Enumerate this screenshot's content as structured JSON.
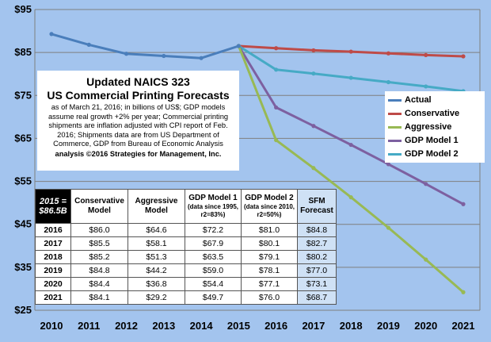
{
  "chart_data": {
    "type": "line",
    "x": [
      2010,
      2011,
      2012,
      2013,
      2014,
      2015,
      2016,
      2017,
      2018,
      2019,
      2020,
      2021
    ],
    "x_ticks": [
      "2010",
      "2011",
      "2012",
      "2013",
      "2014",
      "2015",
      "2016",
      "2017",
      "2018",
      "2019",
      "2020",
      "2021"
    ],
    "ylim": [
      25,
      95
    ],
    "y_ticks": [
      25,
      35,
      45,
      55,
      65,
      75,
      85,
      95
    ],
    "y_tick_labels": [
      "$25",
      "$35",
      "$45",
      "$55",
      "$65",
      "$75",
      "$85",
      "$95"
    ],
    "grid": "horizontal",
    "legend_position": "right",
    "series": [
      {
        "name": "Actual",
        "color": "#4a7ebb",
        "x": [
          2010,
          2011,
          2012,
          2013,
          2014,
          2015
        ],
        "values": [
          89.3,
          86.8,
          84.7,
          84.2,
          83.7,
          86.5
        ]
      },
      {
        "name": "Conservative",
        "color": "#be4b48",
        "x": [
          2015,
          2016,
          2017,
          2018,
          2019,
          2020,
          2021
        ],
        "values": [
          86.5,
          86.0,
          85.5,
          85.2,
          84.8,
          84.4,
          84.1
        ]
      },
      {
        "name": "Aggressive",
        "color": "#98b954",
        "x": [
          2015,
          2016,
          2017,
          2018,
          2019,
          2020,
          2021
        ],
        "values": [
          86.5,
          64.6,
          58.1,
          51.3,
          44.2,
          36.8,
          29.2
        ]
      },
      {
        "name": "GDP Model 1",
        "color": "#7d60a0",
        "x": [
          2015,
          2016,
          2017,
          2018,
          2019,
          2020,
          2021
        ],
        "values": [
          86.5,
          72.2,
          67.9,
          63.5,
          59.0,
          54.4,
          49.7
        ]
      },
      {
        "name": "GDP Model 2",
        "color": "#46aac5",
        "x": [
          2015,
          2016,
          2017,
          2018,
          2019,
          2020,
          2021
        ],
        "values": [
          86.5,
          81.0,
          80.1,
          79.1,
          78.1,
          77.1,
          76.0
        ]
      }
    ],
    "title_lines": [
      "Updated NAICS 323",
      "US Commercial Printing Forecasts"
    ],
    "note": "as of March 21, 2016; in billions of US$; GDP models assume real growth +2% per year; Commercial printing shipments are inflation adjusted with CPI report of Feb. 2016; Shipments data are from US Department of Commerce, GDP from Bureau of Economic Analysis",
    "copyright": "analysis ©2016 Strategies for Management, Inc."
  },
  "table": {
    "corner": "2015 = $86.5B",
    "headers": [
      {
        "main": "Conservative Model",
        "sub": ""
      },
      {
        "main": "Aggressive Model",
        "sub": ""
      },
      {
        "main": "GDP Model 1",
        "sub": "(data since 1995, r2=83%)"
      },
      {
        "main": "GDP Model 2",
        "sub": "(data since 2010, r2=50%)"
      },
      {
        "main": "SFM Forecast",
        "sub": ""
      }
    ],
    "rows": [
      {
        "year": "2016",
        "cells": [
          "$86.0",
          "$64.6",
          "$72.2",
          "$81.0",
          "$84.8"
        ]
      },
      {
        "year": "2017",
        "cells": [
          "$85.5",
          "$58.1",
          "$67.9",
          "$80.1",
          "$82.7"
        ]
      },
      {
        "year": "2018",
        "cells": [
          "$85.2",
          "$51.3",
          "$63.5",
          "$79.1",
          "$80.2"
        ]
      },
      {
        "year": "2019",
        "cells": [
          "$84.8",
          "$44.2",
          "$59.0",
          "$78.1",
          "$77.0"
        ]
      },
      {
        "year": "2020",
        "cells": [
          "$84.4",
          "$36.8",
          "$54.4",
          "$77.1",
          "$73.1"
        ]
      },
      {
        "year": "2021",
        "cells": [
          "$84.1",
          "$29.2",
          "$49.7",
          "$76.0",
          "$68.7"
        ]
      }
    ]
  }
}
